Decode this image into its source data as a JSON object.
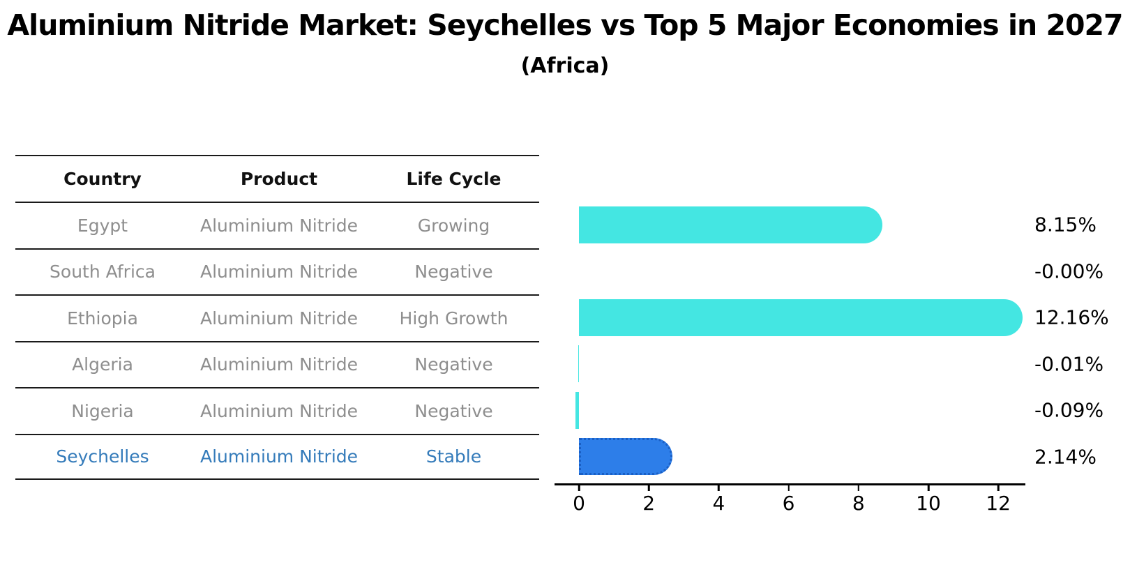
{
  "title": "Aluminium Nitride Market: Seychelles vs Top 5 Major Economies in 2027",
  "subtitle": "(Africa)",
  "table": {
    "headers": [
      "Country",
      "Product",
      "Life Cycle"
    ],
    "rows": [
      {
        "country": "Egypt",
        "product": "Aluminium Nitride",
        "life_cycle": "Growing",
        "highlight": false
      },
      {
        "country": "South Africa",
        "product": "Aluminium Nitride",
        "life_cycle": "Negative",
        "highlight": false
      },
      {
        "country": "Ethiopia",
        "product": "Aluminium Nitride",
        "life_cycle": "High Growth",
        "highlight": false
      },
      {
        "country": "Algeria",
        "product": "Aluminium Nitride",
        "life_cycle": "Negative",
        "highlight": false
      },
      {
        "country": "Nigeria",
        "product": "Aluminium Nitride",
        "life_cycle": "Negative",
        "highlight": false
      },
      {
        "country": "Seychelles",
        "product": "Aluminium Nitride",
        "life_cycle": "Stable",
        "highlight": true
      }
    ]
  },
  "chart_data": {
    "type": "bar",
    "orientation": "horizontal",
    "categories": [
      "Egypt",
      "South Africa",
      "Ethiopia",
      "Algeria",
      "Nigeria",
      "Seychelles"
    ],
    "values": [
      8.15,
      -0.0,
      12.16,
      -0.01,
      -0.09,
      2.14
    ],
    "value_labels": [
      "8.15%",
      "-0.00%",
      "12.16%",
      "-0.01%",
      "-0.09%",
      "2.14%"
    ],
    "x_ticks": [
      0,
      2,
      4,
      6,
      8,
      10,
      12
    ],
    "xlim": [
      -0.7,
      12.77
    ],
    "grid": false,
    "legend": "none",
    "bar_color": "#44e6e2",
    "highlight_index": 5,
    "highlight_color": "#2d7ee9",
    "highlight_border_color": "#1a5fc4",
    "axis_color": "#000000",
    "muted_text_color": "#8e8e8e",
    "highlight_text_color": "#347bba"
  }
}
